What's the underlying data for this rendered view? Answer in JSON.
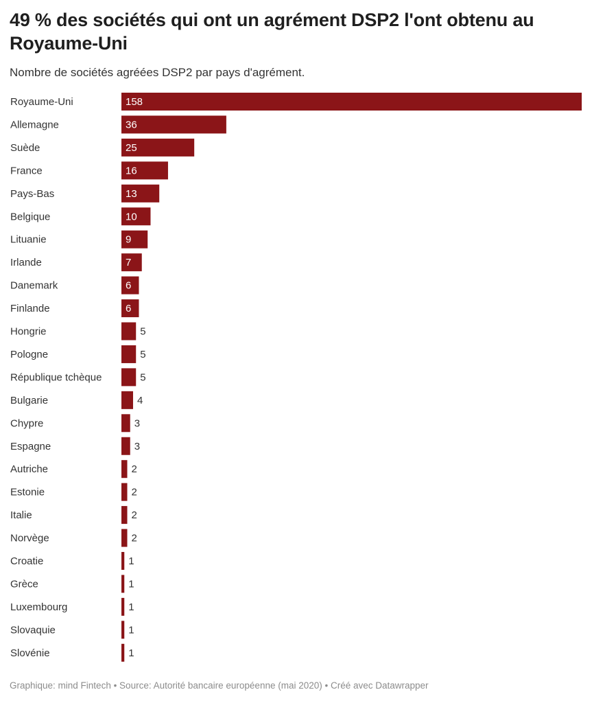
{
  "colors": {
    "bar": "#8b1518",
    "label": "#333333",
    "value_inside": "#ffffff",
    "value_outside": "#333333"
  },
  "footer": {
    "text": "Graphique: mind Fintech • Source: Autorité bancaire européenne (mai 2020) • Créé avec Datawrapper"
  },
  "chart_data": {
    "type": "bar",
    "orientation": "horizontal",
    "title": "49 % des sociétés qui ont un agrément DSP2 l'ont obtenu au Royaume-Uni",
    "subtitle": "Nombre de sociétés agréées DSP2 par pays d'agrément.",
    "xlabel": "",
    "ylabel": "",
    "xlim": [
      0,
      158
    ],
    "grid": false,
    "legend": "none",
    "categories": [
      "Royaume-Uni",
      "Allemagne",
      "Suède",
      "France",
      "Pays-Bas",
      "Belgique",
      "Lituanie",
      "Irlande",
      "Danemark",
      "Finlande",
      "Hongrie",
      "Pologne",
      "République tchèque",
      "Bulgarie",
      "Chypre",
      "Espagne",
      "Autriche",
      "Estonie",
      "Italie",
      "Norvège",
      "Croatie",
      "Grèce",
      "Luxembourg",
      "Slovaquie",
      "Slovénie"
    ],
    "values": [
      158,
      36,
      25,
      16,
      13,
      10,
      9,
      7,
      6,
      6,
      5,
      5,
      5,
      4,
      3,
      3,
      2,
      2,
      2,
      2,
      1,
      1,
      1,
      1,
      1
    ],
    "value_labels": [
      "158",
      "36",
      "25",
      "16",
      "13",
      "10",
      "9",
      "7",
      "6",
      "6",
      "5",
      "5",
      "5",
      "4",
      "3",
      "3",
      "2",
      "2",
      "2",
      "2",
      "1",
      "1",
      "1",
      "1",
      "1"
    ]
  }
}
